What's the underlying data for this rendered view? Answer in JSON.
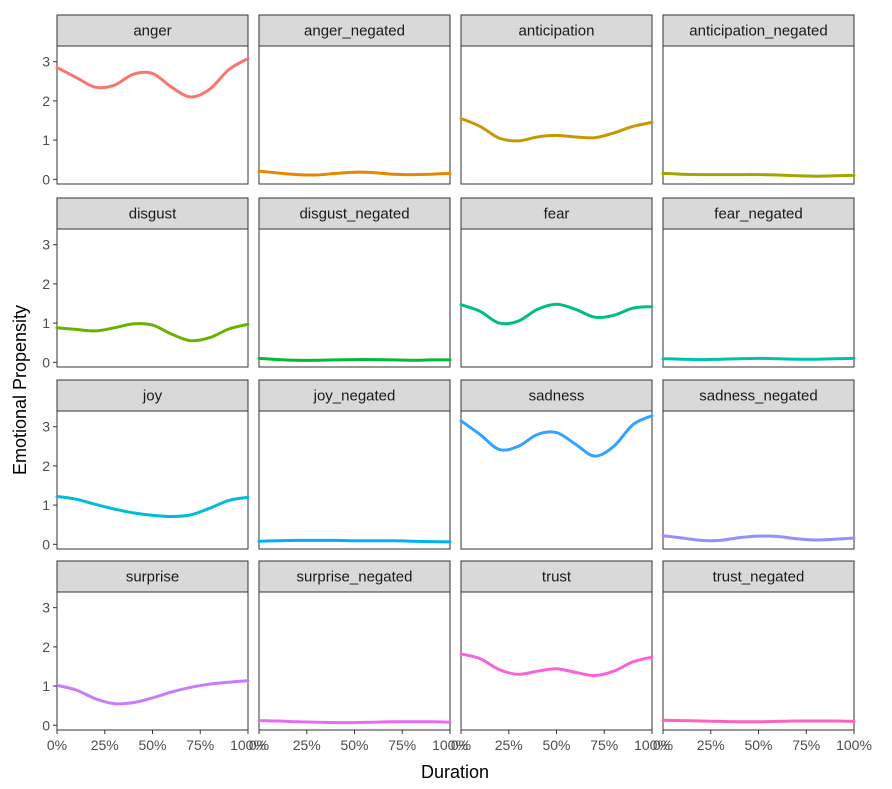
{
  "chart_data": {
    "type": "line",
    "title": "",
    "xlabel": "Duration",
    "ylabel": "Emotional Propensity",
    "x": [
      0,
      10,
      20,
      30,
      40,
      50,
      60,
      70,
      80,
      90,
      100
    ],
    "xlim": [
      0,
      100
    ],
    "ylim": [
      -0.12,
      3.4
    ],
    "x_ticks": [
      0,
      25,
      50,
      75,
      100
    ],
    "x_tick_labels": [
      "0%",
      "25%",
      "50%",
      "75%",
      "100%"
    ],
    "y_ticks": [
      0,
      1,
      2,
      3
    ],
    "y_tick_labels": [
      "0",
      "1",
      "2",
      "3"
    ],
    "grid": false,
    "legend": "none",
    "facet_layout": {
      "columns": 4,
      "rows": 4
    },
    "series": [
      {
        "name": "anger",
        "color": "#F8766D",
        "values": [
          2.85,
          2.6,
          2.35,
          2.4,
          2.68,
          2.7,
          2.35,
          2.1,
          2.3,
          2.8,
          3.08
        ]
      },
      {
        "name": "anger_negated",
        "color": "#E58700",
        "values": [
          0.21,
          0.16,
          0.12,
          0.11,
          0.15,
          0.18,
          0.17,
          0.13,
          0.12,
          0.13,
          0.15
        ]
      },
      {
        "name": "anticipation",
        "color": "#C99800",
        "values": [
          1.55,
          1.35,
          1.05,
          0.98,
          1.08,
          1.12,
          1.08,
          1.06,
          1.18,
          1.35,
          1.45
        ]
      },
      {
        "name": "anticipation_negated",
        "color": "#A3A500",
        "values": [
          0.15,
          0.13,
          0.12,
          0.12,
          0.12,
          0.12,
          0.11,
          0.09,
          0.08,
          0.09,
          0.1
        ]
      },
      {
        "name": "disgust",
        "color": "#6BB100",
        "values": [
          0.88,
          0.84,
          0.8,
          0.88,
          0.98,
          0.95,
          0.72,
          0.55,
          0.63,
          0.85,
          0.97
        ]
      },
      {
        "name": "disgust_negated",
        "color": "#00BA38",
        "values": [
          0.1,
          0.07,
          0.05,
          0.05,
          0.06,
          0.07,
          0.07,
          0.06,
          0.05,
          0.06,
          0.06
        ]
      },
      {
        "name": "fear",
        "color": "#00BF7D",
        "values": [
          1.47,
          1.3,
          1.0,
          1.05,
          1.35,
          1.48,
          1.35,
          1.15,
          1.2,
          1.38,
          1.42
        ]
      },
      {
        "name": "fear_negated",
        "color": "#00C0AF",
        "values": [
          0.09,
          0.08,
          0.07,
          0.08,
          0.09,
          0.1,
          0.09,
          0.08,
          0.08,
          0.09,
          0.1
        ]
      },
      {
        "name": "joy",
        "color": "#00BCD8",
        "values": [
          1.22,
          1.15,
          1.02,
          0.9,
          0.8,
          0.74,
          0.71,
          0.75,
          0.92,
          1.12,
          1.2
        ]
      },
      {
        "name": "joy_negated",
        "color": "#00B0F6",
        "values": [
          0.08,
          0.09,
          0.1,
          0.1,
          0.1,
          0.09,
          0.09,
          0.09,
          0.08,
          0.07,
          0.06
        ]
      },
      {
        "name": "sadness",
        "color": "#35A2FF",
        "values": [
          3.15,
          2.8,
          2.42,
          2.5,
          2.8,
          2.85,
          2.55,
          2.25,
          2.5,
          3.05,
          3.28
        ]
      },
      {
        "name": "sadness_negated",
        "color": "#9590FF",
        "values": [
          0.22,
          0.16,
          0.1,
          0.1,
          0.17,
          0.21,
          0.2,
          0.14,
          0.11,
          0.13,
          0.16
        ]
      },
      {
        "name": "surprise",
        "color": "#C77CFF",
        "values": [
          1.02,
          0.9,
          0.68,
          0.55,
          0.58,
          0.7,
          0.85,
          0.97,
          1.05,
          1.1,
          1.14
        ]
      },
      {
        "name": "surprise_negated",
        "color": "#E76BF3",
        "values": [
          0.12,
          0.11,
          0.09,
          0.08,
          0.07,
          0.07,
          0.08,
          0.09,
          0.09,
          0.09,
          0.08
        ]
      },
      {
        "name": "trust",
        "color": "#FA62DB",
        "values": [
          1.82,
          1.7,
          1.42,
          1.3,
          1.38,
          1.44,
          1.35,
          1.27,
          1.38,
          1.62,
          1.74
        ]
      },
      {
        "name": "trust_negated",
        "color": "#FF62BC",
        "values": [
          0.13,
          0.12,
          0.11,
          0.1,
          0.09,
          0.09,
          0.1,
          0.11,
          0.11,
          0.11,
          0.1
        ]
      }
    ]
  }
}
